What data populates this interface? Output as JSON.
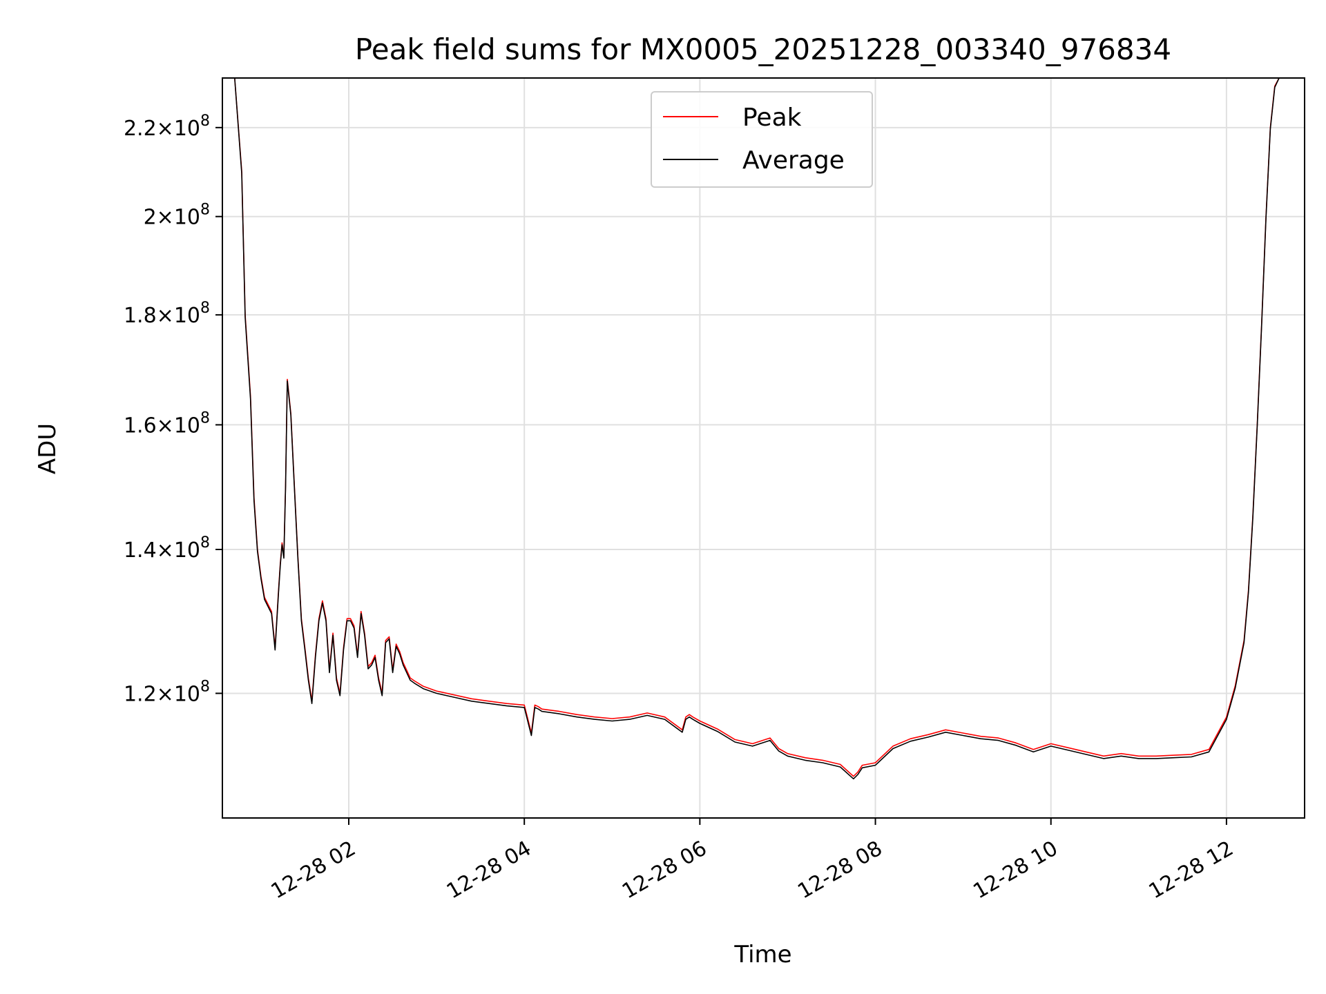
{
  "chart_data": {
    "type": "line",
    "title": "Peak field sums for MX0005_20251228_003340_976834",
    "xlabel": "Time",
    "ylabel": "ADU",
    "y_scale": "log",
    "grid": true,
    "legend_position": "upper-center",
    "xlim_hours": [
      0.56,
      12.89
    ],
    "ylim": [
      105000000,
      232000000
    ],
    "x_ticks": [
      {
        "value": 2,
        "label": "12-28 02"
      },
      {
        "value": 4,
        "label": "12-28 04"
      },
      {
        "value": 6,
        "label": "12-28 06"
      },
      {
        "value": 8,
        "label": "12-28 08"
      },
      {
        "value": 10,
        "label": "12-28 10"
      },
      {
        "value": 12,
        "label": "12-28 12"
      }
    ],
    "y_ticks": [
      {
        "value": 120000000,
        "mantissa": "1.2",
        "exp": "8"
      },
      {
        "value": 140000000,
        "mantissa": "1.4",
        "exp": "8"
      },
      {
        "value": 160000000,
        "mantissa": "1.6",
        "exp": "8"
      },
      {
        "value": 180000000,
        "mantissa": "1.8",
        "exp": "8"
      },
      {
        "value": 200000000,
        "mantissa": "2",
        "exp": "8"
      },
      {
        "value": 220000000,
        "mantissa": "2.2",
        "exp": "8"
      }
    ],
    "times_label_sep": "×10",
    "x_hours": [
      0.56,
      0.7,
      0.78,
      0.82,
      0.88,
      0.92,
      0.96,
      1.0,
      1.04,
      1.08,
      1.12,
      1.16,
      1.2,
      1.22,
      1.24,
      1.26,
      1.28,
      1.3,
      1.34,
      1.38,
      1.42,
      1.46,
      1.5,
      1.54,
      1.58,
      1.62,
      1.66,
      1.7,
      1.74,
      1.78,
      1.82,
      1.86,
      1.9,
      1.94,
      1.98,
      2.02,
      2.06,
      2.1,
      2.14,
      2.18,
      2.22,
      2.26,
      2.3,
      2.34,
      2.38,
      2.42,
      2.46,
      2.5,
      2.54,
      2.58,
      2.62,
      2.66,
      2.7,
      2.75,
      2.85,
      3.0,
      3.2,
      3.4,
      3.6,
      3.8,
      4.0,
      4.08,
      4.12,
      4.16,
      4.2,
      4.4,
      4.6,
      4.8,
      5.0,
      5.2,
      5.4,
      5.6,
      5.8,
      5.84,
      5.88,
      5.92,
      6.0,
      6.2,
      6.4,
      6.6,
      6.8,
      6.9,
      7.0,
      7.2,
      7.4,
      7.6,
      7.75,
      7.8,
      7.85,
      8.0,
      8.2,
      8.4,
      8.6,
      8.8,
      9.0,
      9.2,
      9.4,
      9.6,
      9.8,
      10.0,
      10.2,
      10.4,
      10.6,
      10.8,
      11.0,
      11.2,
      11.4,
      11.6,
      11.8,
      12.0,
      12.1,
      12.2,
      12.25,
      12.3,
      12.35,
      12.4,
      12.45,
      12.5,
      12.55,
      12.6,
      12.65,
      12.7,
      12.75,
      12.8,
      12.89
    ],
    "series": [
      {
        "name": "Peak",
        "color": "#ff0000",
        "values": [
          232000000,
          232000000,
          210000000,
          180000000,
          165000000,
          148000000,
          140000000,
          136000000,
          133000000,
          132000000,
          131000000,
          126000000,
          134000000,
          138000000,
          141000000,
          139000000,
          150000000,
          168000000,
          162000000,
          150000000,
          139000000,
          130000000,
          126000000,
          122000000,
          119000000,
          125000000,
          130000000,
          132500000,
          130000000,
          123000000,
          128000000,
          122000000,
          120000000,
          126000000,
          130000000,
          130000000,
          129000000,
          125000000,
          131000000,
          128000000,
          123500000,
          124000000,
          125000000,
          122000000,
          120000000,
          127000000,
          127500000,
          123000000,
          126500000,
          125500000,
          124000000,
          123000000,
          122000000,
          121600000,
          120900000,
          120300000,
          119800000,
          119300000,
          119000000,
          118700000,
          118500000,
          115000000,
          118500000,
          118300000,
          118000000,
          117700000,
          117300000,
          117000000,
          116800000,
          117000000,
          117500000,
          117000000,
          115400000,
          117000000,
          117300000,
          117000000,
          116500000,
          115500000,
          114200000,
          113700000,
          114400000,
          113100000,
          112500000,
          112000000,
          111700000,
          111200000,
          109800000,
          110300000,
          111100000,
          111400000,
          113400000,
          114300000,
          114800000,
          115400000,
          115000000,
          114600000,
          114400000,
          113800000,
          113000000,
          113700000,
          113200000,
          112700000,
          112200000,
          112500000,
          112200000,
          112200000,
          112300000,
          112400000,
          113000000,
          117000000,
          121000000,
          127000000,
          134000000,
          145000000,
          160000000,
          178000000,
          200000000,
          220000000,
          230000000,
          232000000,
          232000000,
          232000000,
          232000000,
          232000000,
          232000000
        ]
      },
      {
        "name": "Average",
        "color": "#000000",
        "values": [
          232000000,
          232000000,
          209500000,
          179500000,
          164500000,
          147500000,
          139700000,
          135700000,
          132700000,
          131700000,
          130700000,
          125700000,
          133700000,
          137700000,
          140700000,
          138700000,
          149700000,
          167700000,
          161700000,
          149700000,
          138700000,
          129700000,
          125700000,
          121700000,
          118700000,
          124700000,
          129700000,
          132200000,
          129700000,
          122700000,
          127700000,
          121700000,
          119700000,
          125700000,
          129700000,
          129700000,
          128700000,
          124700000,
          130700000,
          127700000,
          123200000,
          123700000,
          124700000,
          121700000,
          119700000,
          126700000,
          127200000,
          122700000,
          126200000,
          125200000,
          123700000,
          122700000,
          121700000,
          121300000,
          120600000,
          120000000,
          119500000,
          119000000,
          118700000,
          118400000,
          118200000,
          114700000,
          118200000,
          118000000,
          117700000,
          117400000,
          117000000,
          116700000,
          116500000,
          116700000,
          117200000,
          116700000,
          115100000,
          116700000,
          117000000,
          116700000,
          116200000,
          115200000,
          113900000,
          113400000,
          114100000,
          112800000,
          112200000,
          111700000,
          111400000,
          110900000,
          109500000,
          110000000,
          110800000,
          111100000,
          113100000,
          114000000,
          114500000,
          115100000,
          114700000,
          114300000,
          114100000,
          113500000,
          112700000,
          113400000,
          112900000,
          112400000,
          111900000,
          112200000,
          111900000,
          111900000,
          112000000,
          112100000,
          112700000,
          116700000,
          120700000,
          126700000,
          133700000,
          144700000,
          159700000,
          177700000,
          199700000,
          219700000,
          229700000,
          232000000,
          232000000,
          232000000,
          232000000,
          232000000,
          232000000
        ]
      }
    ]
  }
}
